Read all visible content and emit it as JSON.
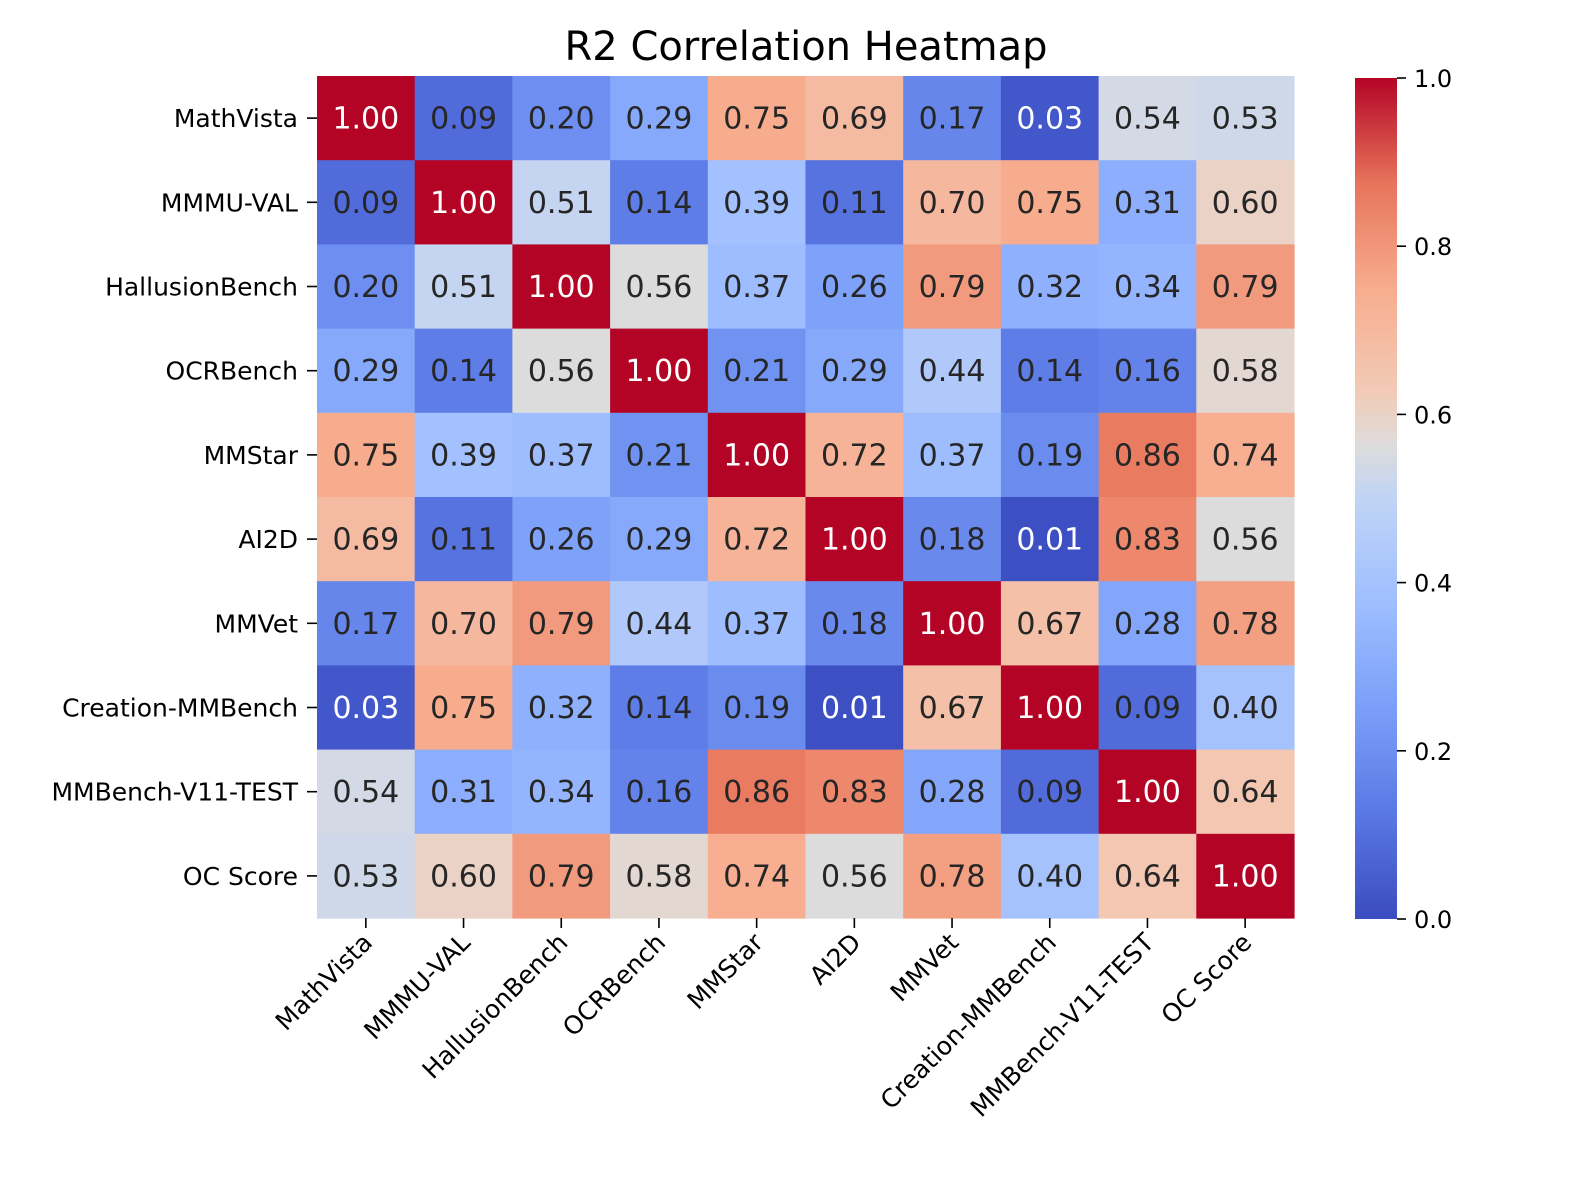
{
  "chart_data": {
    "type": "heatmap",
    "title": "R2 Correlation Heatmap",
    "colormap": "coolwarm",
    "value_range": [
      0.0,
      1.0
    ],
    "value_format": "2 decimals",
    "row_labels": [
      "MathVista",
      "MMMU-VAL",
      "HallusionBench",
      "OCRBench",
      "MMStar",
      "AI2D",
      "MMVet",
      "Creation-MMBench",
      "MMBench-V11-TEST",
      "OC Score"
    ],
    "col_labels": [
      "MathVista",
      "MMMU-VAL",
      "HallusionBench",
      "OCRBench",
      "MMStar",
      "AI2D",
      "MMVet",
      "Creation-MMBench",
      "MMBench-V11-TEST",
      "OC Score"
    ],
    "values": [
      [
        1.0,
        0.09,
        0.2,
        0.29,
        0.75,
        0.69,
        0.17,
        0.03,
        0.54,
        0.53
      ],
      [
        0.09,
        1.0,
        0.51,
        0.14,
        0.39,
        0.11,
        0.7,
        0.75,
        0.31,
        0.6
      ],
      [
        0.2,
        0.51,
        1.0,
        0.56,
        0.37,
        0.26,
        0.79,
        0.32,
        0.34,
        0.79
      ],
      [
        0.29,
        0.14,
        0.56,
        1.0,
        0.21,
        0.29,
        0.44,
        0.14,
        0.16,
        0.58
      ],
      [
        0.75,
        0.39,
        0.37,
        0.21,
        1.0,
        0.72,
        0.37,
        0.19,
        0.86,
        0.74
      ],
      [
        0.69,
        0.11,
        0.26,
        0.29,
        0.72,
        1.0,
        0.18,
        0.01,
        0.83,
        0.56
      ],
      [
        0.17,
        0.7,
        0.79,
        0.44,
        0.37,
        0.18,
        1.0,
        0.67,
        0.28,
        0.78
      ],
      [
        0.03,
        0.75,
        0.32,
        0.14,
        0.19,
        0.01,
        0.67,
        1.0,
        0.09,
        0.4
      ],
      [
        0.54,
        0.31,
        0.34,
        0.16,
        0.86,
        0.83,
        0.28,
        0.09,
        1.0,
        0.64
      ],
      [
        0.53,
        0.6,
        0.79,
        0.58,
        0.74,
        0.56,
        0.78,
        0.4,
        0.64,
        1.0
      ]
    ],
    "colorbar": {
      "ticks": [
        0.0,
        0.2,
        0.4,
        0.6,
        0.8,
        1.0
      ],
      "tick_labels": [
        "0.0",
        "0.2",
        "0.4",
        "0.6",
        "0.8",
        "1.0"
      ],
      "placement": "right"
    }
  }
}
